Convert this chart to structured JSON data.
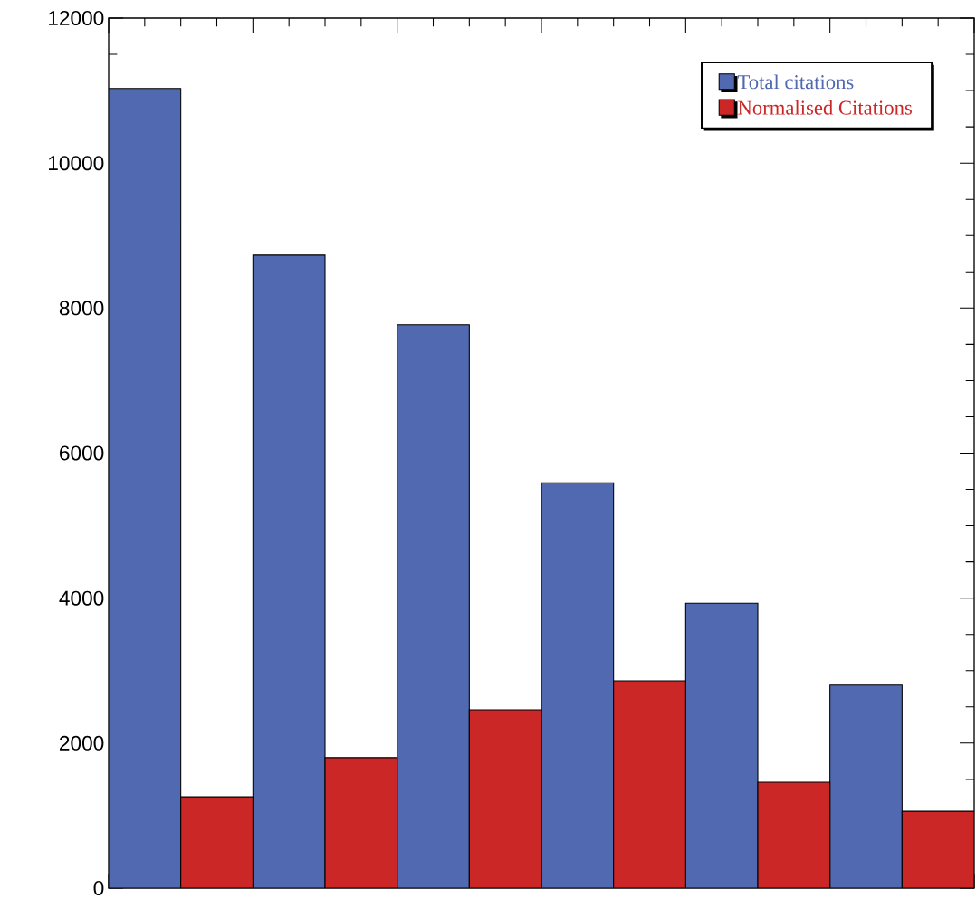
{
  "chart_data": {
    "type": "bar",
    "categories": [
      null,
      null,
      null,
      null,
      null,
      null
    ],
    "series": [
      {
        "name": "Total citations",
        "color": "#5069b0",
        "values": [
          11030,
          8730,
          7770,
          5590,
          3930,
          2800
        ]
      },
      {
        "name": "Normalised Citations",
        "color": "#cc2727",
        "values": [
          1260,
          1800,
          2460,
          2860,
          1460,
          1060
        ]
      }
    ],
    "ylim": [
      0,
      12000
    ],
    "yticks": [
      0,
      2000,
      4000,
      6000,
      8000,
      10000,
      12000
    ],
    "legend": "top right"
  }
}
